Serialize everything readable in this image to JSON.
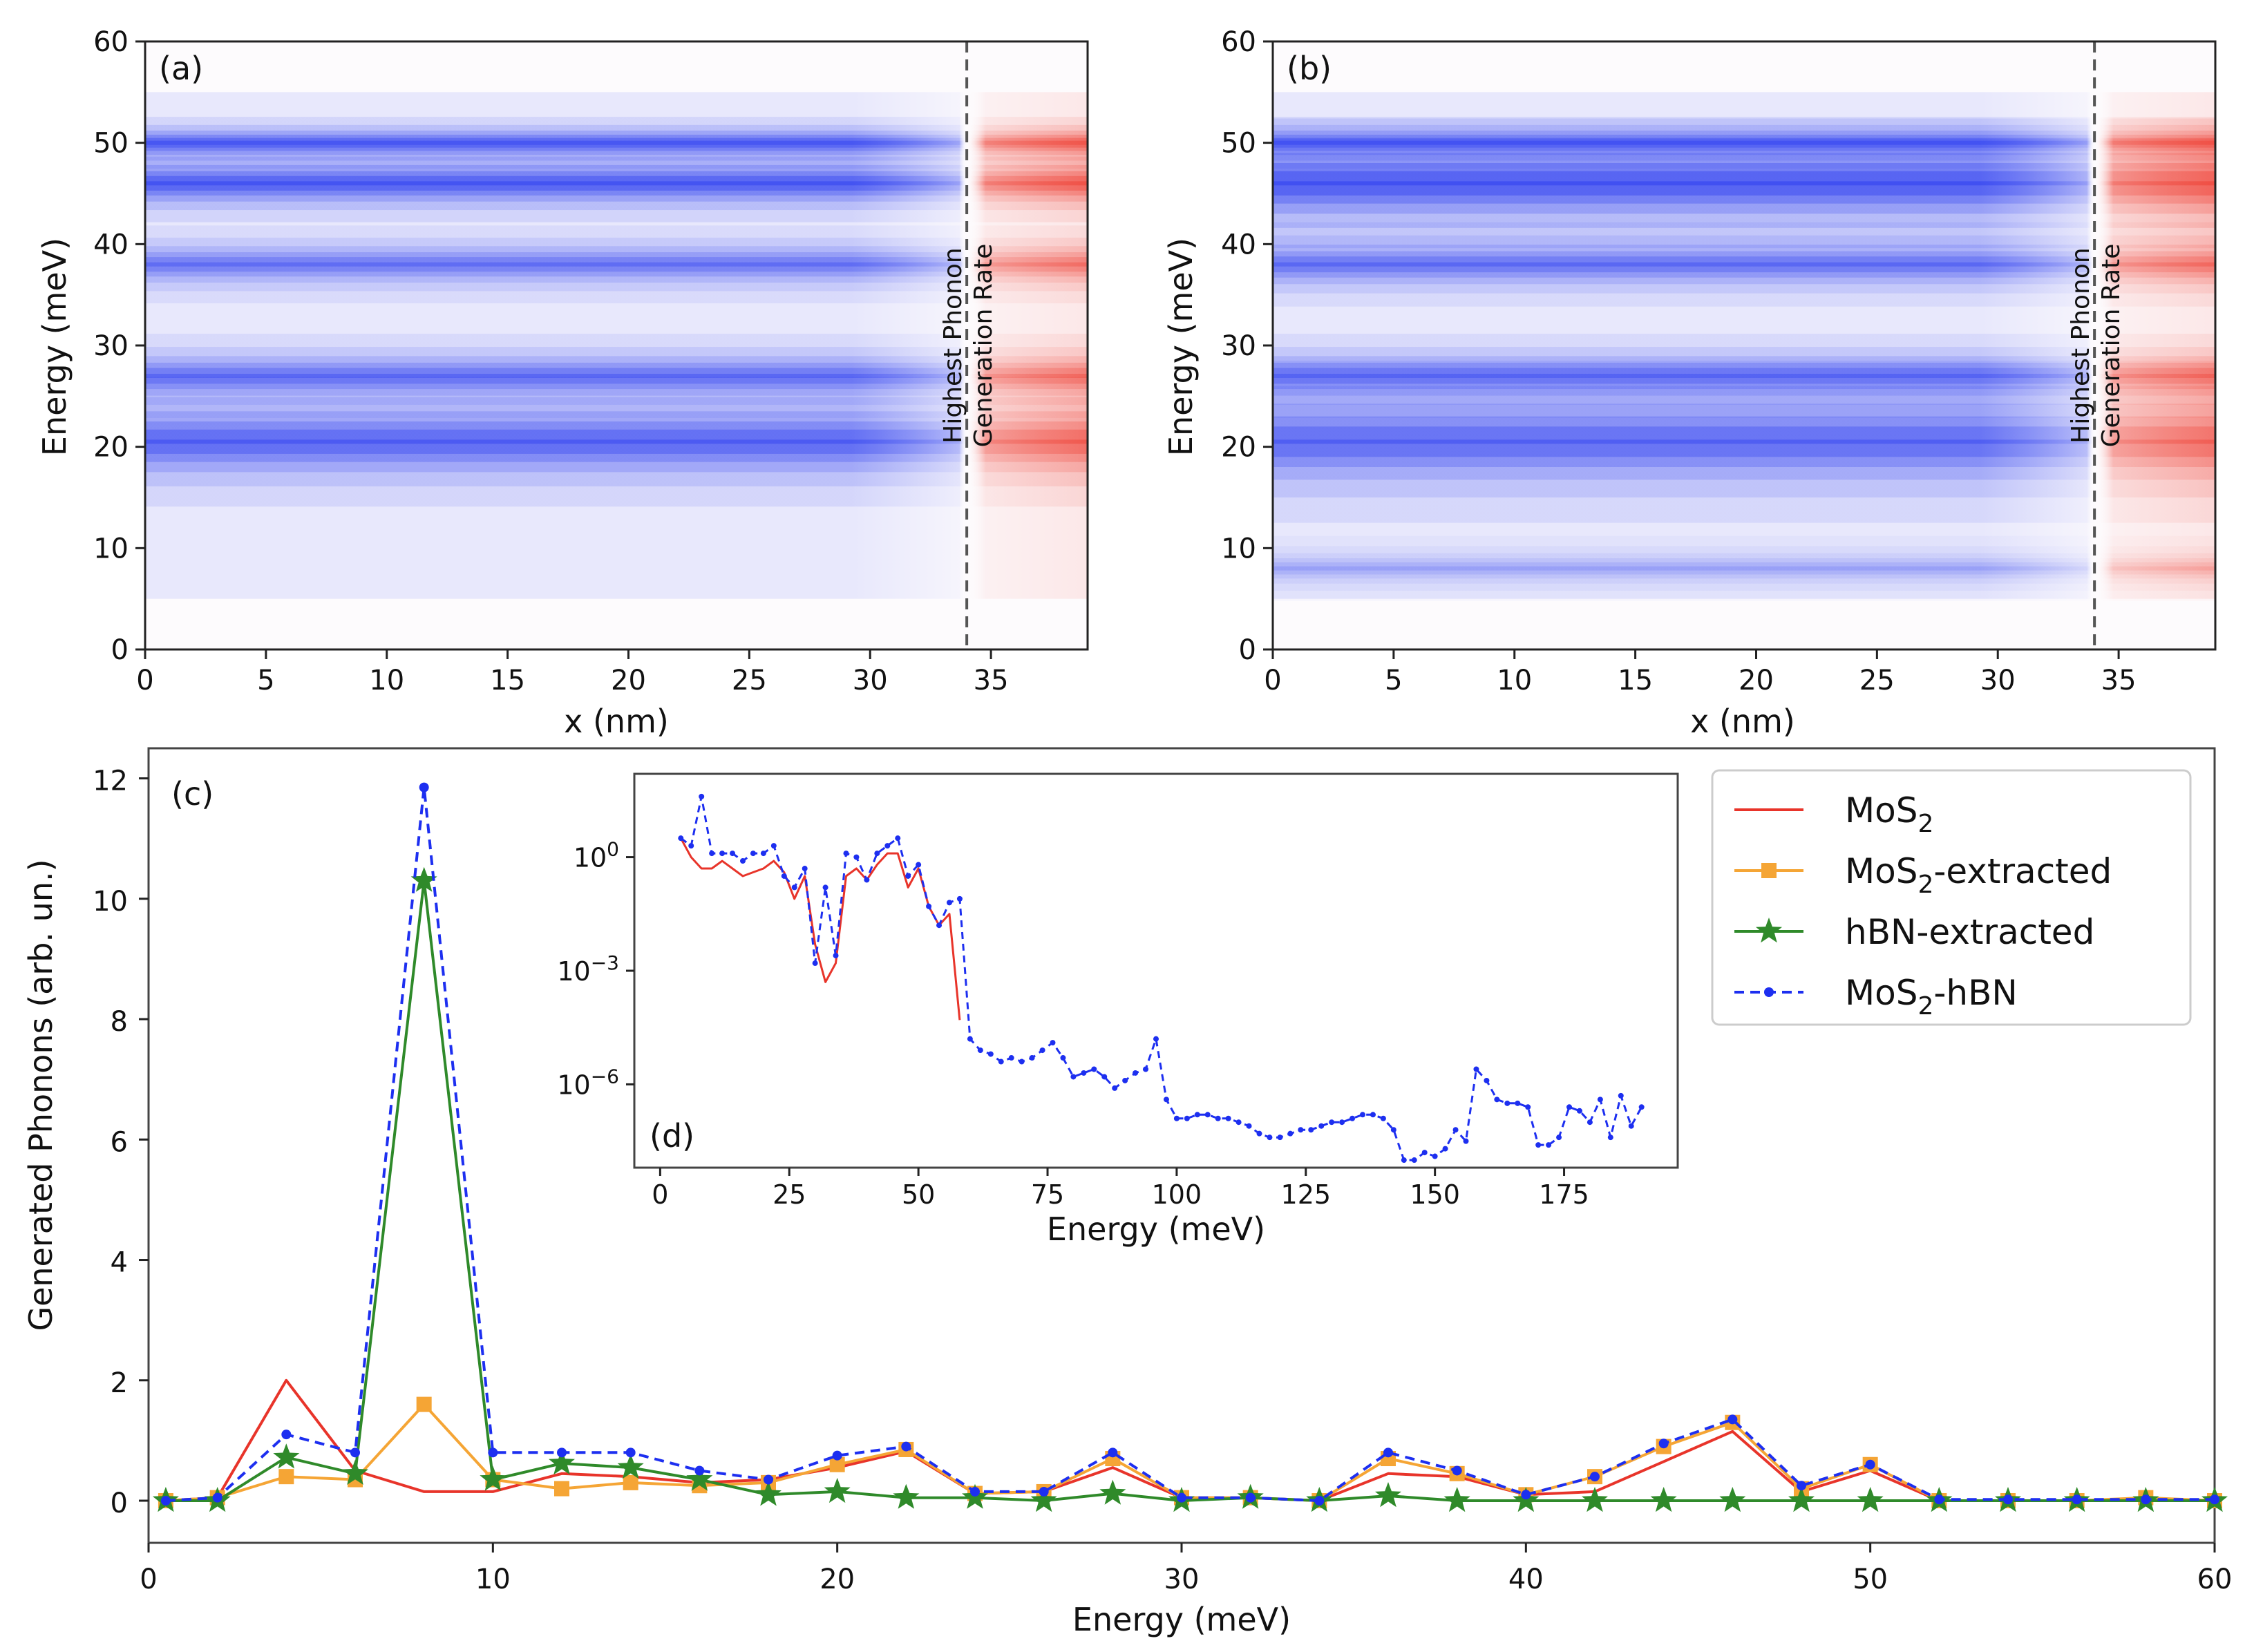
{
  "chart_data": [
    {
      "id": "a",
      "type": "heatmap",
      "panel_label": "(a)",
      "xlabel": "x (nm)",
      "ylabel": "Energy (meV)",
      "xlim": [
        0,
        39
      ],
      "ylim": [
        0,
        60
      ],
      "xticks": [
        "0",
        "5",
        "10",
        "15",
        "20",
        "25",
        "30",
        "35"
      ],
      "yticks": [
        "0",
        "10",
        "20",
        "30",
        "40",
        "50",
        "60"
      ],
      "boundary_x": 34,
      "boundary_label_1": "Highest Phonon",
      "boundary_label_2": "Generation Rate",
      "bands": [
        {
          "center": 46,
          "half_width": 1.2,
          "intensity": 0.95
        },
        {
          "center": 50,
          "half_width": 0.8,
          "intensity": 0.9
        },
        {
          "center": 20.5,
          "half_width": 2.0,
          "intensity": 0.85
        },
        {
          "center": 27,
          "half_width": 1.3,
          "intensity": 0.7
        },
        {
          "center": 38,
          "half_width": 1.2,
          "intensity": 0.65
        }
      ],
      "colors": {
        "absorption": "#2a3cf0",
        "generation": "#ee3a2e"
      }
    },
    {
      "id": "b",
      "type": "heatmap",
      "panel_label": "(b)",
      "xlabel": "x (nm)",
      "ylabel": "Energy (meV)",
      "xlim": [
        0,
        39
      ],
      "ylim": [
        0,
        60
      ],
      "xticks": [
        "0",
        "5",
        "10",
        "15",
        "20",
        "25",
        "30",
        "35"
      ],
      "yticks": [
        "0",
        "10",
        "20",
        "30",
        "40",
        "50",
        "60"
      ],
      "boundary_x": 34,
      "boundary_label_1": "Highest Phonon",
      "boundary_label_2": "Generation Rate",
      "bands": [
        {
          "center": 46,
          "half_width": 2.0,
          "intensity": 1.0
        },
        {
          "center": 50,
          "half_width": 0.8,
          "intensity": 0.85
        },
        {
          "center": 20.5,
          "half_width": 2.5,
          "intensity": 0.8
        },
        {
          "center": 27,
          "half_width": 1.3,
          "intensity": 0.7
        },
        {
          "center": 38,
          "half_width": 1.3,
          "intensity": 0.7
        },
        {
          "center": 8,
          "half_width": 1.0,
          "intensity": 0.3
        }
      ],
      "colors": {
        "absorption": "#2a3cf0",
        "generation": "#ee3a2e"
      }
    },
    {
      "id": "c",
      "type": "line",
      "panel_label": "(c)",
      "xlabel": "Energy (meV)",
      "ylabel": "Generated Phonons (arb. un.)",
      "xlim": [
        0,
        60
      ],
      "ylim": [
        -0.7,
        12.5
      ],
      "xticks": [
        "0",
        "10",
        "20",
        "30",
        "40",
        "50",
        "60"
      ],
      "yticks": [
        "0",
        "2",
        "4",
        "6",
        "8",
        "10",
        "12"
      ],
      "x": [
        0.5,
        2,
        4,
        6,
        8,
        10,
        12,
        14,
        16,
        18,
        20,
        22,
        24,
        26,
        28,
        30,
        32,
        34,
        36,
        38,
        40,
        42,
        44,
        46,
        48,
        50,
        52,
        54,
        56,
        58,
        60
      ],
      "series": [
        {
          "name": "MoS2",
          "legend_main": "MoS",
          "legend_sub": "2",
          "legend_rest": "",
          "color": "#e8342a",
          "marker": "none",
          "dash": "none",
          "values": [
            0,
            0.05,
            2.0,
            0.5,
            0.15,
            0.15,
            0.45,
            0.4,
            0.3,
            0.35,
            0.55,
            0.82,
            0.12,
            0.15,
            0.55,
            0.05,
            0.05,
            0,
            0.45,
            0.4,
            0.1,
            0.15,
            0.65,
            1.15,
            0.15,
            0.5,
            0,
            0,
            0,
            0,
            0
          ]
        },
        {
          "name": "MoS2-extracted",
          "legend_main": "MoS",
          "legend_sub": "2",
          "legend_rest": "-extracted",
          "color": "#f5a535",
          "marker": "square",
          "dash": "none",
          "values": [
            0,
            0.05,
            0.4,
            0.35,
            1.6,
            0.35,
            0.2,
            0.3,
            0.25,
            0.3,
            0.6,
            0.85,
            0.12,
            0.15,
            0.7,
            0.05,
            0.05,
            0,
            0.7,
            0.45,
            0.1,
            0.4,
            0.9,
            1.3,
            0.2,
            0.6,
            0,
            0,
            0,
            0.05,
            0
          ]
        },
        {
          "name": "hBN-extracted",
          "legend_main": "hBN-extracted",
          "legend_sub": "",
          "legend_rest": "",
          "color": "#2f8a2a",
          "marker": "star",
          "dash": "none",
          "values": [
            0,
            0,
            0.72,
            0.45,
            10.3,
            0.35,
            0.62,
            0.55,
            0.35,
            0.1,
            0.15,
            0.05,
            0.05,
            0,
            0.12,
            0,
            0.05,
            0,
            0.08,
            0,
            0,
            0,
            0,
            0,
            0,
            0,
            0,
            0,
            0,
            0,
            0
          ]
        },
        {
          "name": "MoS2-hBN",
          "legend_main": "MoS",
          "legend_sub": "2",
          "legend_rest": "-hBN",
          "color": "#1d2ff0",
          "marker": "dot",
          "dash": "14,9",
          "values": [
            0,
            0.05,
            1.1,
            0.8,
            11.85,
            0.8,
            0.8,
            0.8,
            0.5,
            0.35,
            0.75,
            0.9,
            0.15,
            0.15,
            0.8,
            0.05,
            0.05,
            0,
            0.8,
            0.5,
            0.1,
            0.4,
            0.95,
            1.35,
            0.25,
            0.6,
            0.02,
            0.02,
            0.02,
            0.02,
            0.02
          ]
        }
      ]
    },
    {
      "id": "d",
      "type": "line",
      "panel_label": "(d)",
      "xlabel": "Energy (meV)",
      "ylabel": "",
      "yscale": "log",
      "xlim": [
        -5,
        197
      ],
      "ylim_log10": [
        -8.2,
        2.2
      ],
      "xticks": [
        "0",
        "25",
        "50",
        "75",
        "100",
        "125",
        "150",
        "175"
      ],
      "ytick_labels": [
        {
          "base": "10",
          "exp": "0",
          "log": 0
        },
        {
          "base": "10",
          "exp": "−3",
          "log": -3
        },
        {
          "base": "10",
          "exp": "−6",
          "log": -6
        }
      ],
      "series": [
        {
          "name": "MoS2",
          "color": "#e8342a",
          "dash": "none",
          "x": [
            4,
            6,
            8,
            10,
            12,
            14,
            16,
            18,
            20,
            22,
            24,
            26,
            28,
            30,
            32,
            34,
            36,
            38,
            40,
            42,
            44,
            46,
            48,
            50,
            52,
            54,
            56,
            58
          ],
          "log10": [
            0.5,
            0,
            -0.3,
            -0.3,
            -0.1,
            -0.3,
            -0.5,
            -0.4,
            -0.3,
            -0.1,
            -0.4,
            -1.1,
            -0.5,
            -2.3,
            -3.3,
            -2.8,
            -0.5,
            -0.3,
            -0.6,
            -0.2,
            0.1,
            0.1,
            -0.8,
            -0.3,
            -1.3,
            -1.8,
            -1.5,
            -4.3
          ]
        },
        {
          "name": "MoS2-hBN",
          "color": "#1d2ff0",
          "dash": "10,7",
          "x": [
            4,
            6,
            8,
            10,
            12,
            14,
            16,
            18,
            20,
            22,
            24,
            26,
            28,
            30,
            32,
            34,
            36,
            38,
            40,
            42,
            44,
            46,
            48,
            50,
            52,
            54,
            56,
            58,
            60,
            62,
            64,
            66,
            68,
            70,
            72,
            74,
            76,
            78,
            80,
            82,
            84,
            86,
            88,
            90,
            92,
            94,
            96,
            98,
            100,
            102,
            104,
            106,
            108,
            110,
            112,
            114,
            116,
            118,
            120,
            122,
            124,
            126,
            128,
            130,
            132,
            134,
            136,
            138,
            140,
            142,
            144,
            146,
            148,
            150,
            152,
            154,
            156,
            158,
            160,
            162,
            164,
            166,
            168,
            170,
            172,
            174,
            176,
            178,
            180,
            182,
            184,
            186,
            188,
            190
          ],
          "log10": [
            0.5,
            0.3,
            1.6,
            0.1,
            0.1,
            0.1,
            -0.1,
            0.1,
            0.1,
            0.3,
            -0.5,
            -0.8,
            -0.3,
            -2.8,
            -0.8,
            -2.6,
            0.1,
            0,
            -0.6,
            0.1,
            0.3,
            0.5,
            -0.5,
            -0.2,
            -1.3,
            -1.8,
            -1.2,
            -1.1,
            -4.8,
            -5.1,
            -5.2,
            -5.4,
            -5.3,
            -5.4,
            -5.3,
            -5.1,
            -4.9,
            -5.3,
            -5.8,
            -5.7,
            -5.6,
            -5.8,
            -6.1,
            -5.9,
            -5.7,
            -5.6,
            -4.8,
            -6.4,
            -6.9,
            -6.9,
            -6.8,
            -6.8,
            -6.9,
            -6.9,
            -7.0,
            -7.1,
            -7.3,
            -7.4,
            -7.4,
            -7.3,
            -7.2,
            -7.2,
            -7.1,
            -7.0,
            -7.0,
            -6.9,
            -6.8,
            -6.8,
            -6.9,
            -7.2,
            -8.0,
            -8.0,
            -7.8,
            -7.9,
            -7.7,
            -7.2,
            -7.5,
            -5.6,
            -5.9,
            -6.4,
            -6.5,
            -6.5,
            -6.6,
            -7.6,
            -7.6,
            -7.4,
            -6.6,
            -6.7,
            -7.0,
            -6.4,
            -7.4,
            -6.3,
            -7.1,
            -6.6
          ]
        }
      ]
    }
  ]
}
